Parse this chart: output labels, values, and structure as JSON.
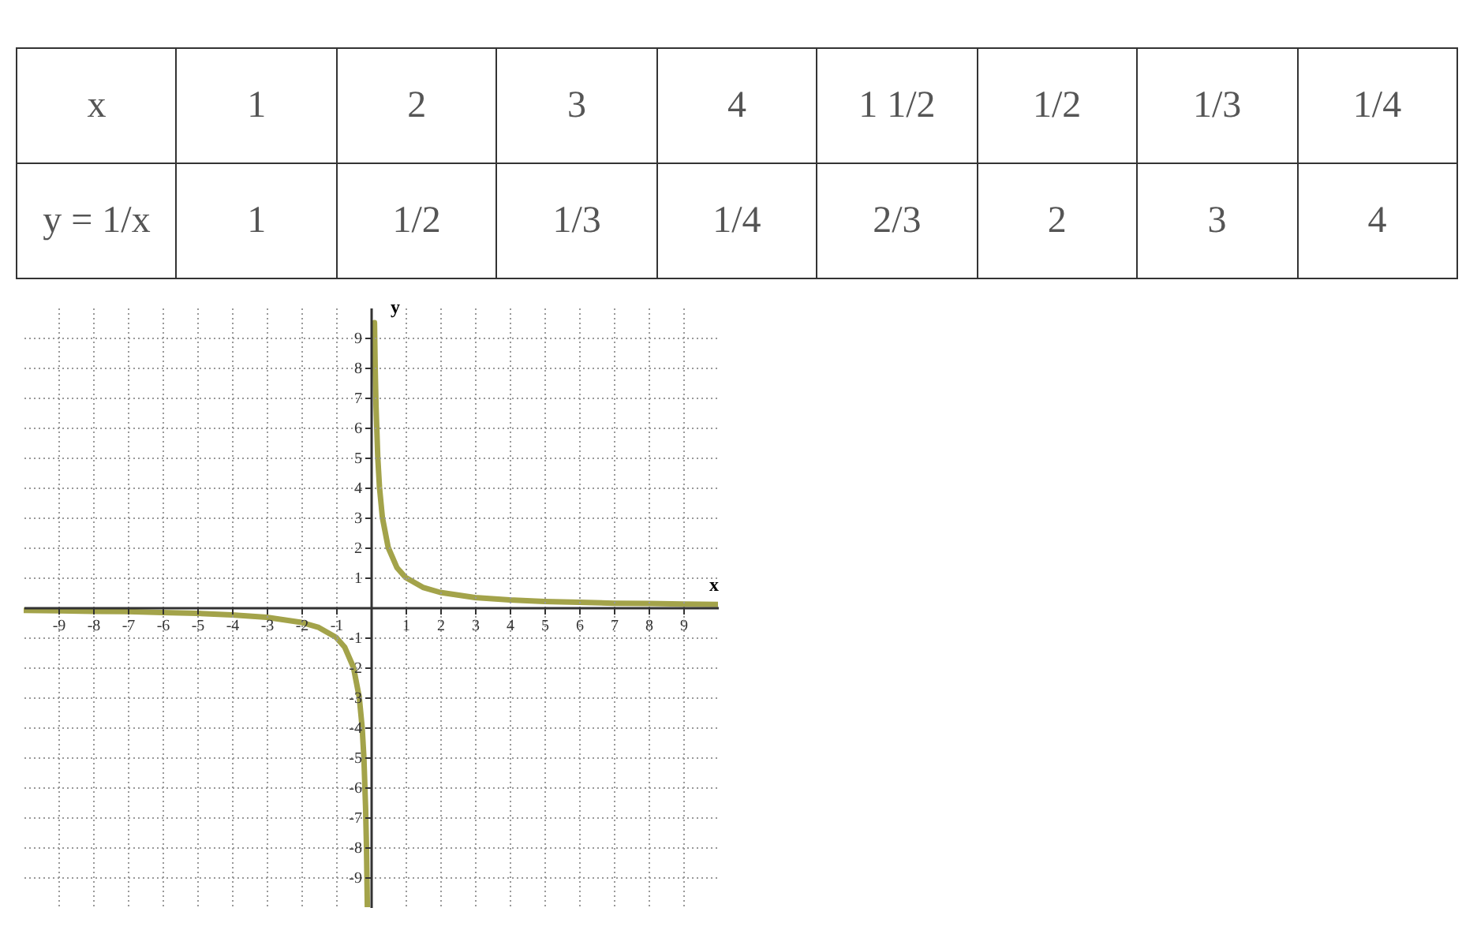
{
  "chart_data": {
    "type": "line",
    "xlabel": "x",
    "ylabel": "y",
    "annotations": [
      "x",
      "1",
      "2",
      "3",
      "4",
      "1 1/2",
      "1/2",
      "1/3",
      "1/4",
      "y = 1/x",
      "1",
      "1/2",
      "1/3",
      "1/4",
      "2/3",
      "2",
      "3",
      "4"
    ],
    "series": [
      {
        "color": "#a3a34a",
        "x": [
          0.105,
          0.125,
          0.15,
          0.2,
          0.25,
          0.333,
          0.5,
          0.75,
          1,
          1.5,
          2,
          3,
          4,
          5,
          6,
          7,
          8,
          9,
          10
        ],
        "values": [
          9.5,
          8,
          6.7,
          5,
          4,
          3,
          2,
          1.33,
          1,
          0.67,
          0.5,
          0.33,
          0.25,
          0.2,
          0.17,
          0.14,
          0.13,
          0.11,
          0.1
        ]
      },
      {
        "color": "#a3a34a",
        "x": [
          -10,
          -9,
          -8,
          -7,
          -6,
          -5,
          -4,
          -3,
          -2,
          -1.5,
          -1,
          -0.75,
          -0.5,
          -0.333,
          -0.25,
          -0.2,
          -0.15,
          -0.125,
          -0.1
        ],
        "values": [
          -0.1,
          -0.11,
          -0.13,
          -0.14,
          -0.17,
          -0.2,
          -0.25,
          -0.33,
          -0.5,
          -0.67,
          -1,
          -1.33,
          -2,
          -3,
          -4,
          -5,
          -6.7,
          -8,
          -10
        ]
      }
    ],
    "xlim": [
      -10,
      10
    ],
    "ylim": [
      -10,
      10
    ],
    "xticks": [
      -9,
      -8,
      -7,
      -6,
      -5,
      -4,
      -3,
      -2,
      -1,
      1,
      2,
      3,
      4,
      5,
      6,
      7,
      8,
      9
    ],
    "yticks": [
      -9,
      -8,
      -7,
      -6,
      -5,
      -4,
      -3,
      -2,
      -1,
      1,
      2,
      3,
      4,
      5,
      6,
      7,
      8,
      9
    ],
    "grid": true,
    "line_style": "solid",
    "marker": "none"
  }
}
